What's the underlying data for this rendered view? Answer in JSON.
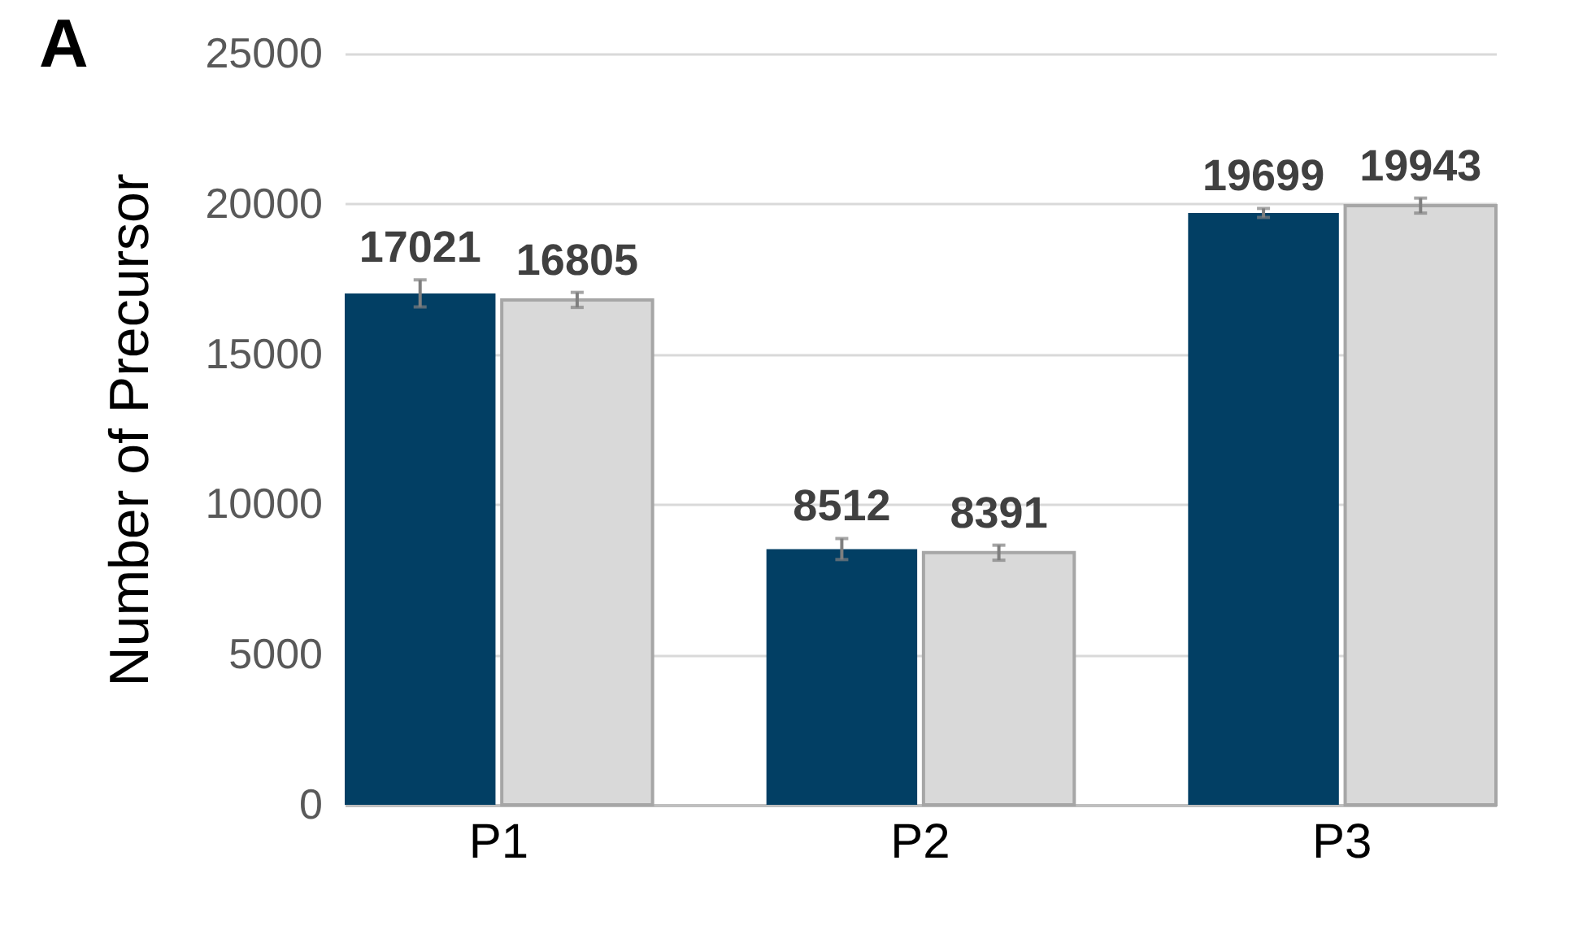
{
  "chart_data": {
    "type": "bar",
    "ylabel": "Number of Precursor",
    "categories": [
      "P1",
      "P2",
      "P3"
    ],
    "series": [
      {
        "color": "#023f64",
        "values": [
          17021,
          8512,
          19699
        ],
        "errors": [
          450,
          350,
          150
        ]
      },
      {
        "color": "#d9d9d9",
        "values": [
          16805,
          8391,
          19943
        ],
        "errors": [
          250,
          250,
          250
        ]
      }
    ],
    "ylim": [
      0,
      25000
    ],
    "yticks": [
      0,
      5000,
      10000,
      15000,
      20000,
      25000
    ],
    "grid": "y",
    "data_labels": true,
    "legend": false,
    "annotations": [
      "A"
    ]
  }
}
